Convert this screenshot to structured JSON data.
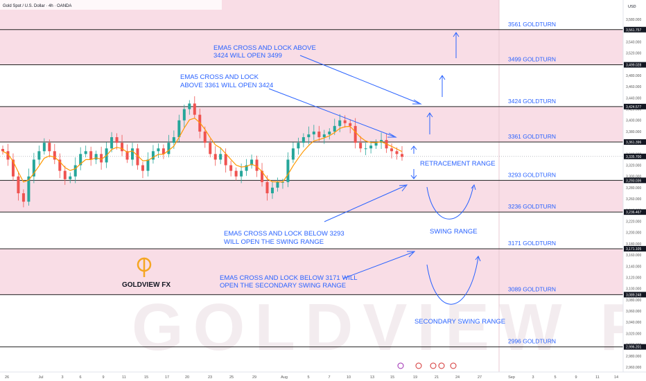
{
  "header": {
    "symbol_text": "Gold Spot / U.S. Dollar · 4h · OANDA",
    "currency": "USD"
  },
  "watermark": {
    "logo_text": "GOLDVIEW FX",
    "big_text": "GOLDVIEW FX"
  },
  "colors": {
    "band_fill": "#f9dde6",
    "level_line": "#1f1f1f",
    "annotation_blue": "#2962ff",
    "candle_up": "#26a69a",
    "candle_down": "#ef5350",
    "ema": "#ff9800",
    "logo_orange": "#f5a623",
    "current_price_box": "#131722"
  },
  "chart_data": {
    "type": "candlestick",
    "title": "Gold Spot / U.S. Dollar · 4h · OANDA",
    "ylabel": "USD",
    "ylim": [
      2950,
      3600
    ],
    "y_ticks": [
      2960,
      2980,
      3000,
      3020,
      3040,
      3060,
      3080,
      3100,
      3120,
      3140,
      3160,
      3180,
      3200,
      3220,
      3240,
      3260,
      3280,
      3300,
      3320,
      3340,
      3360,
      3380,
      3400,
      3420,
      3440,
      3460,
      3480,
      3500,
      3520,
      3540,
      3560,
      3580
    ],
    "x_ticks": [
      "26",
      "Jul",
      "3",
      "6",
      "9",
      "11",
      "15",
      "17",
      "20",
      "23",
      "25",
      "29",
      "Aug",
      "5",
      "7",
      "10",
      "13",
      "15",
      "19",
      "21",
      "24",
      "27",
      "Sep",
      "3",
      "5",
      "9",
      "11",
      "14"
    ],
    "current_price": "3,335.700",
    "levels": [
      {
        "value": 3561.757,
        "axis_label": "3,561.757",
        "name": "3561 GOLDTURN"
      },
      {
        "value": 3499.028,
        "axis_label": "3,499.028",
        "name": "3499 GOLDTURN"
      },
      {
        "value": 3424.577,
        "axis_label": "3,424.577",
        "name": "3424 GOLDTURN"
      },
      {
        "value": 3361.396,
        "axis_label": "3,361.396",
        "name": "3361 GOLDTURN"
      },
      {
        "value": 3293.036,
        "axis_label": "3,293.036",
        "name": "3293 GOLDTURN"
      },
      {
        "value": 3236.467,
        "axis_label": "3,236.467",
        "name": "3236 GOLDTURN"
      },
      {
        "value": 3171.105,
        "axis_label": "3,171.105",
        "name": "3171 GOLDTURN"
      },
      {
        "value": 3089.248,
        "axis_label": "3,089.248",
        "name": "3089 GOLDTURN"
      },
      {
        "value": 2996.201,
        "axis_label": "2,996.201",
        "name": "2996 GOLDTURN"
      }
    ],
    "bands": [
      [
        3499.028,
        3561.757
      ],
      [
        3361.396,
        3424.577
      ],
      [
        3236.467,
        3293.036
      ],
      [
        3089.248,
        3171.105
      ]
    ],
    "range_labels": [
      "RETRACEMENT RANGE",
      "SWING RANGE",
      "SECONDARY SWING RANGE"
    ],
    "annotations": [
      {
        "line1": "EMA5 CROSS AND LOCK ABOVE",
        "line2": "3424  WILL OPEN 3499"
      },
      {
        "line1": "EMA5 CROSS AND LOCK",
        "line2": "ABOVE 3361 WILL OPEN 3424"
      },
      {
        "line1": "EMA5 CROSS AND LOCK BELOW 3293",
        "line2": "WILL OPEN THE SWING RANGE"
      },
      {
        "line1": "EMA5 CROSS AND LOCK BELOW 3171 WILL",
        "line2": "OPEN THE SECONDARY SWING RANGE"
      }
    ],
    "path_close": [
      3345,
      3330,
      3300,
      3270,
      3255,
      3300,
      3330,
      3345,
      3360,
      3345,
      3330,
      3310,
      3295,
      3300,
      3320,
      3340,
      3345,
      3330,
      3340,
      3325,
      3350,
      3370,
      3360,
      3345,
      3330,
      3350,
      3320,
      3310,
      3330,
      3345,
      3350,
      3340,
      3360,
      3370,
      3400,
      3420,
      3430,
      3410,
      3380,
      3360,
      3340,
      3330,
      3340,
      3320,
      3310,
      3300,
      3310,
      3320,
      3330,
      3310,
      3290,
      3270,
      3280,
      3290,
      3290,
      3330,
      3350,
      3360,
      3370,
      3375,
      3380,
      3370,
      3375,
      3380,
      3390,
      3400,
      3395,
      3390,
      3360,
      3350,
      3350,
      3355,
      3360,
      3365,
      3350,
      3345,
      3340,
      3335
    ]
  }
}
